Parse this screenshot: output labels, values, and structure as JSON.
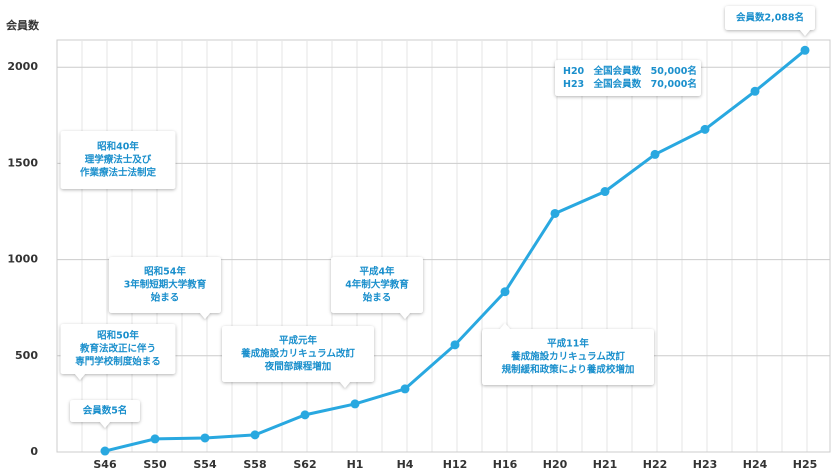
{
  "chart_data": {
    "type": "line",
    "y_label": "会員数",
    "categories": [
      "S46",
      "S50",
      "S54",
      "S58",
      "S62",
      "H1",
      "H4",
      "H12",
      "H16",
      "H20",
      "H21",
      "H22",
      "H23",
      "H24",
      "H25"
    ],
    "series": [
      {
        "name": "会員数",
        "color": "#29a8e0",
        "values": [
          5,
          68,
          73,
          89,
          193,
          250,
          328,
          557,
          833,
          1240,
          1354,
          1547,
          1677,
          1875,
          2088
        ]
      }
    ],
    "ylim": [
      0,
      2100
    ],
    "yticks": [
      0,
      500,
      1000,
      1500,
      2000
    ],
    "grid": true,
    "annotations": [
      {
        "lines": [
          "会員数5名"
        ]
      },
      {
        "lines": [
          "昭和50年",
          "教育法改正に伴う",
          "専門学校制度始まる"
        ]
      },
      {
        "lines": [
          "昭和40年",
          "理学療法士及び",
          "作業療法士法制定"
        ]
      },
      {
        "lines": [
          "昭和54年",
          "3年制短期大学教育",
          "始まる"
        ]
      },
      {
        "lines": [
          "平成元年",
          "養成施設カリキュラム改訂",
          "夜間部課程増加"
        ]
      },
      {
        "lines": [
          "平成4年",
          "4年制大学教育",
          "始まる"
        ]
      },
      {
        "lines": [
          "平成11年",
          "養成施設カリキュラム改訂",
          "規制緩和政策により養成校増加"
        ]
      },
      {
        "lines": [
          "H20　全国会員数　50,000名",
          "H23　全国会員数　70,000名"
        ]
      },
      {
        "lines": [
          "会員数2,088名"
        ]
      }
    ]
  }
}
